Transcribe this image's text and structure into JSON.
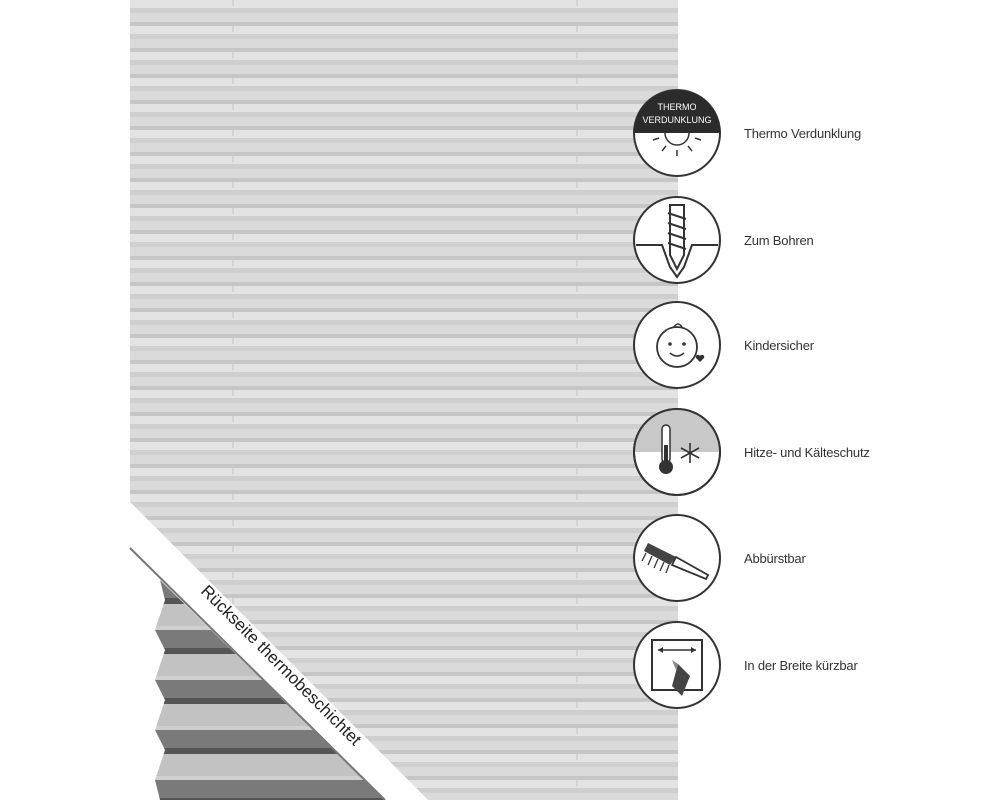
{
  "band_text": "Rückseite thermobeschichtet",
  "badge": {
    "line1": "THERMO",
    "line2": "VERDUNKLUNG"
  },
  "features": [
    {
      "label": "Thermo Verdunklung",
      "icon": "thermo-sun-icon"
    },
    {
      "label": "Zum Bohren",
      "icon": "screw-icon"
    },
    {
      "label": "Kindersicher",
      "icon": "baby-face-icon"
    },
    {
      "label": "Hitze- und Kälteschutz",
      "icon": "thermometer-snowflake-icon"
    },
    {
      "label": "Abbürstbar",
      "icon": "brush-icon"
    },
    {
      "label": "In der Breite kürzbar",
      "icon": "cutter-icon"
    }
  ],
  "colors": {
    "blind": "#d4d4d4",
    "icon_stroke": "#333333",
    "badge_fill": "#2b2b2b"
  }
}
